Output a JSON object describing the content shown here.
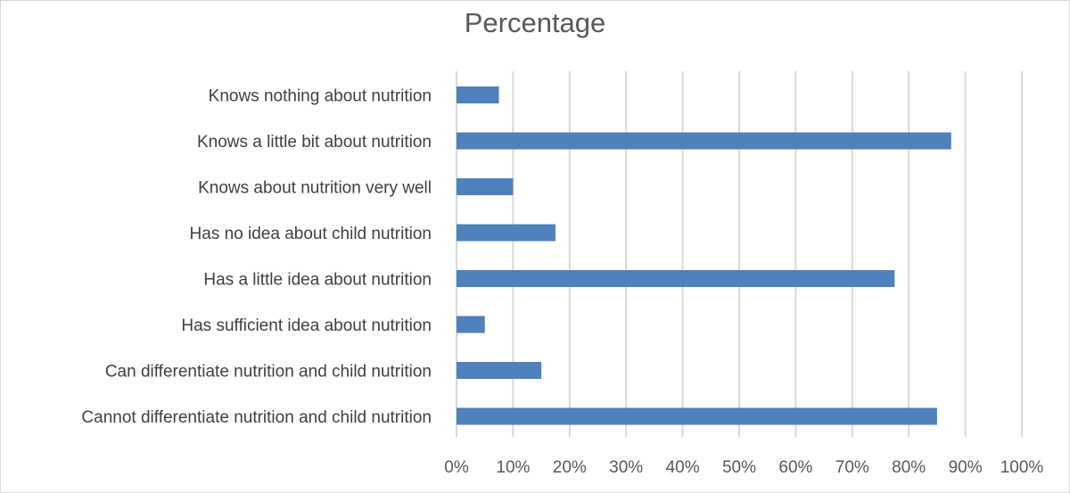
{
  "chart_data": {
    "type": "bar",
    "orientation": "horizontal",
    "title": "Percentage",
    "categories": [
      "Knows nothing about nutrition",
      "Knows a little bit about nutrition",
      "Knows about nutrition very well",
      "Has no idea about child nutrition",
      "Has a little idea about nutrition",
      "Has sufficient idea about nutrition",
      "Can differentiate nutrition and child nutrition",
      "Cannot differentiate nutrition and child nutrition"
    ],
    "values": [
      7.5,
      87.5,
      10,
      17.5,
      77.5,
      5,
      15,
      85
    ],
    "xlim": [
      0,
      100
    ],
    "xticks": [
      "0%",
      "10%",
      "20%",
      "30%",
      "40%",
      "50%",
      "60%",
      "70%",
      "80%",
      "90%",
      "100%"
    ],
    "grid": true,
    "bar_color": "#4f81bd",
    "gridline_color": "#d9d9d9"
  }
}
